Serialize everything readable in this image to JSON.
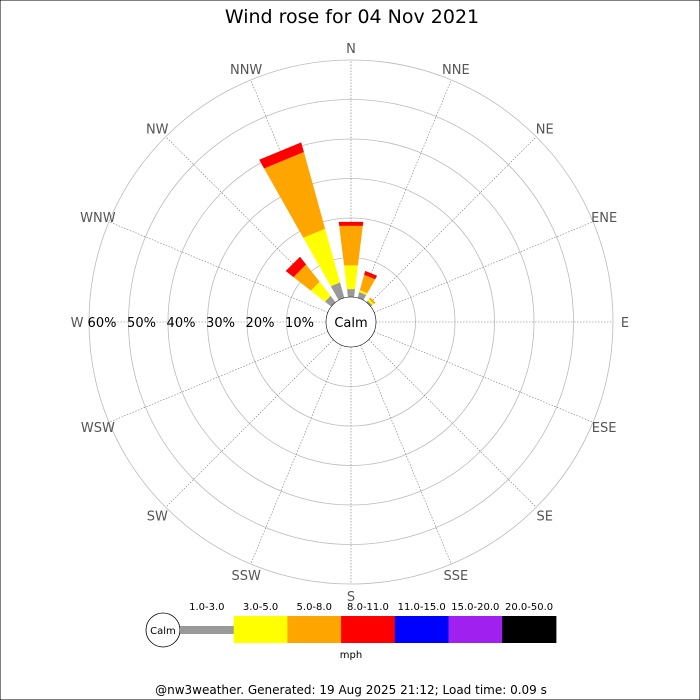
{
  "chart_data": {
    "type": "wind-rose",
    "title": "Wind rose for 04 Nov 2021",
    "calm_label": "Calm",
    "directions": [
      "N",
      "NNE",
      "NE",
      "ENE",
      "E",
      "ESE",
      "SE",
      "SSE",
      "S",
      "SSW",
      "SW",
      "WSW",
      "W",
      "WNW",
      "NW",
      "NNW"
    ],
    "radial_ticks": [
      "10%",
      "20%",
      "30%",
      "40%",
      "50%",
      "60%"
    ],
    "radial_values": [
      10,
      20,
      30,
      40,
      50,
      60
    ],
    "radial_max": 60,
    "speed_bins": [
      {
        "label": "1.0-3.0",
        "color": "#999999"
      },
      {
        "label": "3.0-5.0",
        "color": "#ffff00"
      },
      {
        "label": "5.0-8.0",
        "color": "#ffa500"
      },
      {
        "label": "8.0-11.0",
        "color": "#ff0000"
      },
      {
        "label": "11.0-15.0",
        "color": "#0000ff"
      },
      {
        "label": "15.0-20.0",
        "color": "#a020f0"
      },
      {
        "label": "20.0-50.0",
        "color": "#000000"
      }
    ],
    "units": "mph",
    "values": {
      "N": [
        2.0,
        6.0,
        10.0,
        1.0,
        0,
        0,
        0
      ],
      "NNE": [
        1.5,
        0.5,
        4.0,
        1.0,
        0,
        0,
        0
      ],
      "NE": [
        0.5,
        0.5,
        0.5,
        0,
        0,
        0,
        0
      ],
      "NW": [
        2.0,
        4.5,
        5.5,
        2.5,
        0,
        0,
        0
      ],
      "NNW": [
        4.0,
        14.0,
        20.0,
        2.5,
        0,
        0,
        0
      ]
    }
  },
  "footer": "@nw3weather. Generated: 19 Aug 2025 21:12; Load time: 0.09 s"
}
